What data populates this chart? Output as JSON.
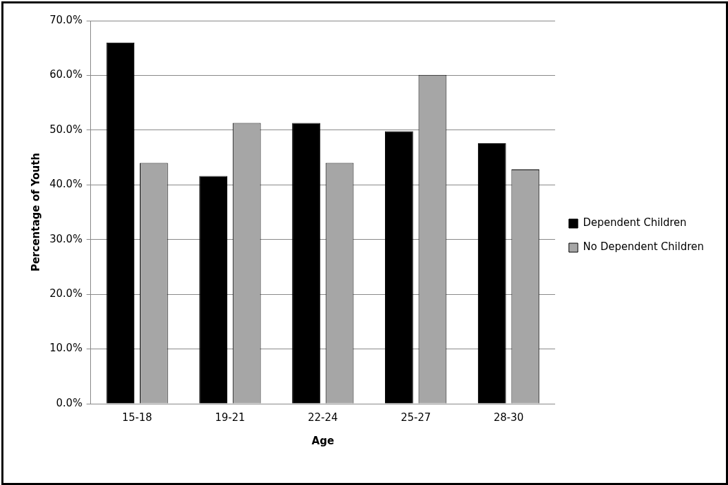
{
  "chart_data": {
    "type": "bar",
    "xlabel": "Age",
    "ylabel": "Percentage of Youth",
    "categories": [
      "15-18",
      "19-21",
      "22-24",
      "25-27",
      "28-30"
    ],
    "series": [
      {
        "name": "Dependent Children",
        "color": "#000000",
        "values": [
          66.0,
          41.6,
          51.3,
          49.8,
          47.6
        ]
      },
      {
        "name": "No Dependent Children",
        "color": "#a6a6a6",
        "values": [
          44.0,
          51.3,
          44.0,
          60.1,
          42.8
        ]
      }
    ],
    "ylim": [
      0,
      70
    ],
    "yticks": [
      {
        "value": 0,
        "label": "0.0%"
      },
      {
        "value": 10,
        "label": "10.0%"
      },
      {
        "value": 20,
        "label": "20.0%"
      },
      {
        "value": 30,
        "label": "30.0%"
      },
      {
        "value": 40,
        "label": "40.0%"
      },
      {
        "value": 50,
        "label": "50.0%"
      },
      {
        "value": 60,
        "label": "60.0%"
      },
      {
        "value": 70,
        "label": "70.0%"
      }
    ],
    "grid": "y",
    "legend": "right"
  }
}
